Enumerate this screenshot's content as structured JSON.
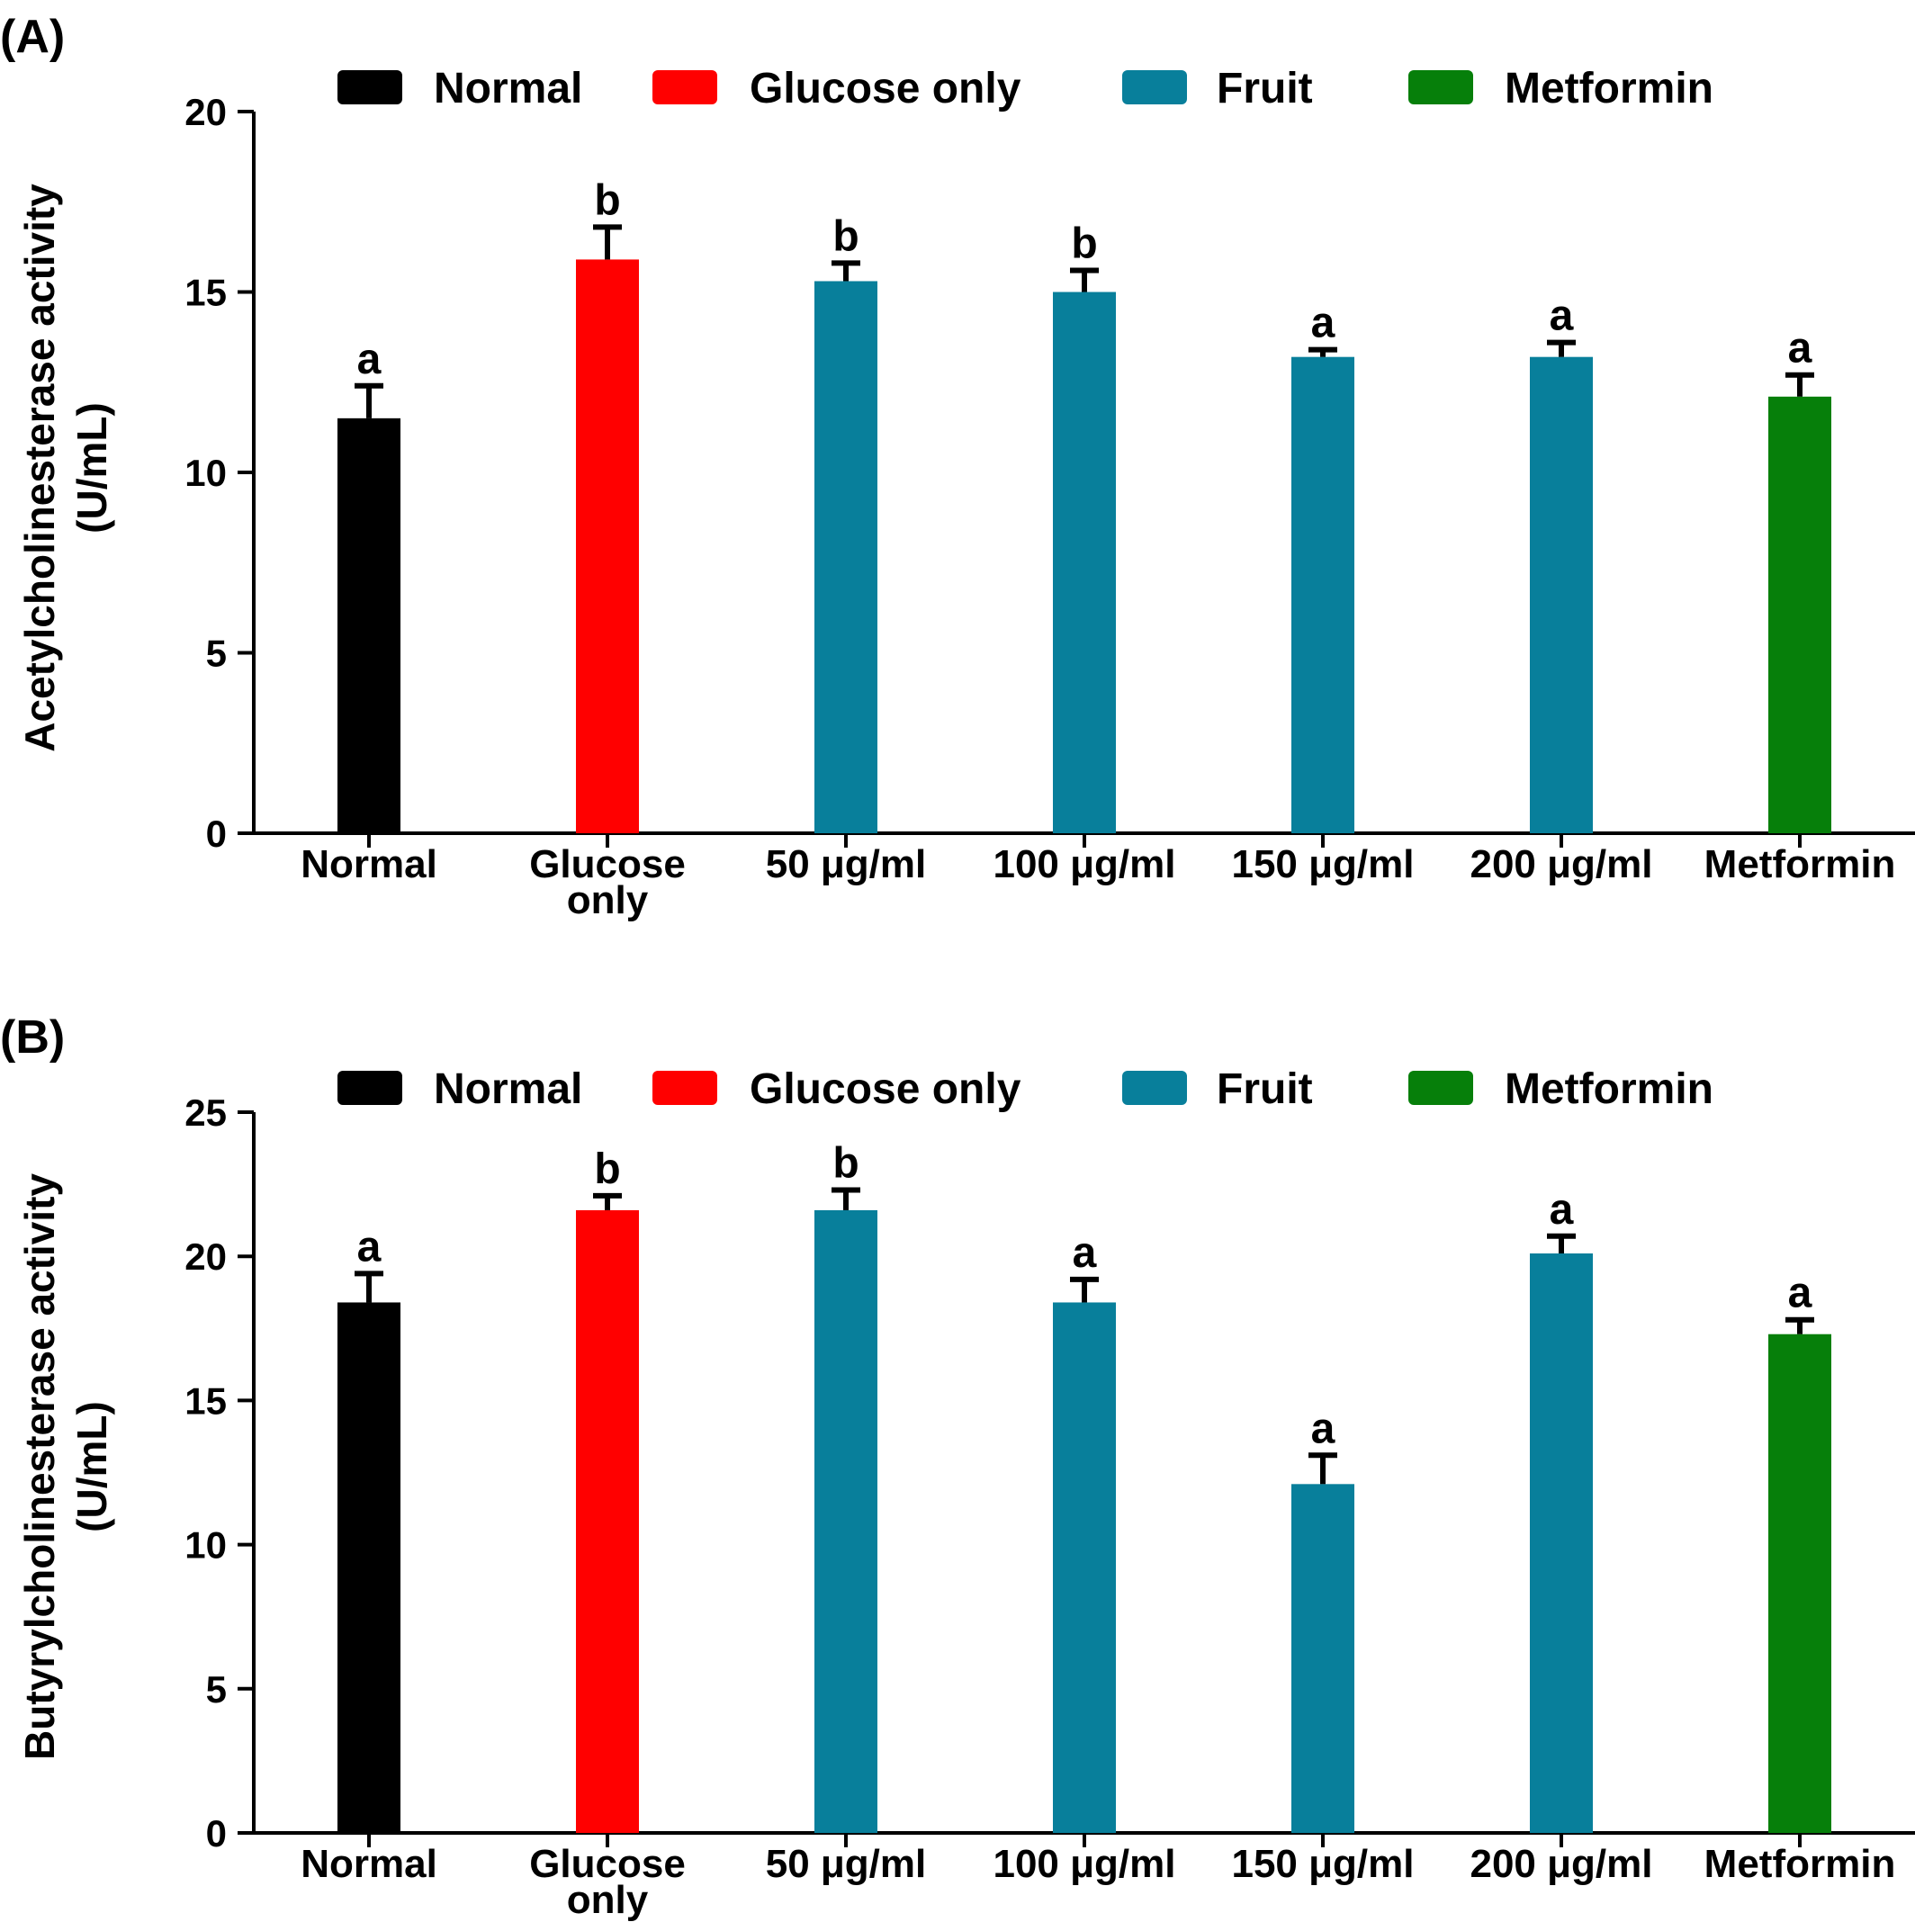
{
  "colors": {
    "Normal": "#000000",
    "Glucose only": "#ff0000",
    "Fruit": "#087f9b",
    "Metformin": "#067f0a"
  },
  "legend": [
    "Normal",
    "Glucose only",
    "Fruit",
    "Metformin"
  ],
  "chart_data": [
    {
      "type": "bar",
      "panel_label": "(A)",
      "ylabel_line1": "Acetylcholinesterase activity",
      "ylabel_line2": "(U/mL)",
      "ylim": [
        0,
        20
      ],
      "yticks": [
        0,
        5,
        10,
        15,
        20
      ],
      "categories": [
        "Normal",
        "Glucose only",
        "50 μg/ml",
        "100 μg/ml",
        "150 μg/ml",
        "200 μg/ml",
        "Metformin"
      ],
      "groups": [
        "Normal",
        "Glucose only",
        "Fruit",
        "Fruit",
        "Fruit",
        "Fruit",
        "Metformin"
      ],
      "values": [
        11.5,
        15.9,
        15.3,
        15.0,
        13.2,
        13.2,
        12.1
      ],
      "errors": [
        0.9,
        0.9,
        0.5,
        0.6,
        0.2,
        0.4,
        0.6
      ],
      "significance": [
        "a",
        "b",
        "b",
        "b",
        "a",
        "a",
        "a"
      ]
    },
    {
      "type": "bar",
      "panel_label": "(B)",
      "ylabel_line1": "Butyrylcholinesterase activity",
      "ylabel_line2": "(U/mL)",
      "ylim": [
        0,
        25
      ],
      "yticks": [
        0,
        5,
        10,
        15,
        20,
        25
      ],
      "categories": [
        "Normal",
        "Glucose only",
        "50 μg/ml",
        "100 μg/ml",
        "150 μg/ml",
        "200 μg/ml",
        "Metformin"
      ],
      "groups": [
        "Normal",
        "Glucose only",
        "Fruit",
        "Fruit",
        "Fruit",
        "Fruit",
        "Metformin"
      ],
      "values": [
        18.4,
        21.6,
        21.6,
        18.4,
        12.1,
        20.1,
        17.3
      ],
      "errors": [
        1.0,
        0.5,
        0.7,
        0.8,
        1.0,
        0.6,
        0.5
      ],
      "significance": [
        "a",
        "b",
        "b",
        "a",
        "a",
        "a",
        "a"
      ]
    }
  ]
}
